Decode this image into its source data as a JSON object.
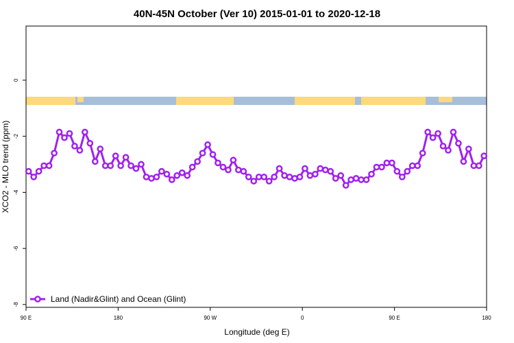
{
  "chart_data": {
    "type": "line",
    "title": "40N-45N October (Ver 10)   2015-01-01 to 2020-12-18",
    "x_label": "Longitude (deg E)",
    "y_label": "XCO2 - MLO trend (ppm)",
    "x": [
      92.5,
      97.5,
      102.5,
      107.5,
      112.5,
      117.5,
      122.5,
      127.5,
      132.5,
      137.5,
      142.5,
      147.5,
      152.5,
      157.5,
      162.5,
      167.5,
      172.5,
      177.5,
      182.5,
      187.5,
      192.5,
      197.5,
      202.5,
      207.5,
      212.5,
      217.5,
      222.5,
      227.5,
      232.5,
      237.5,
      242.5,
      247.5,
      252.5,
      257.5,
      262.5,
      267.5,
      272.5,
      277.5,
      282.5,
      287.5,
      292.5,
      297.5,
      302.5,
      307.5,
      312.5,
      317.5,
      322.5,
      327.5,
      332.5,
      337.5,
      342.5,
      347.5,
      352.5,
      357.5,
      362.5,
      367.5,
      372.5,
      377.5,
      382.5,
      387.5,
      392.5,
      397.5,
      402.5,
      407.5,
      412.5,
      417.5,
      422.5,
      427.5,
      432.5,
      437.5,
      442.5,
      447.5,
      452.5,
      457.5,
      462.5,
      467.5,
      472.5,
      477.5,
      482.5,
      487.5,
      492.5,
      497.5,
      502.5,
      507.5,
      512.5,
      517.5,
      522.5,
      527.5,
      532.5,
      537.5
    ],
    "series": [
      {
        "name": "Land (Nadir&Glint) and Ocean (Glint)",
        "color": "#a020f0",
        "values": [
          -3.25,
          -3.45,
          -3.25,
          -3.05,
          -3.05,
          -2.6,
          -1.85,
          -2.05,
          -1.9,
          -2.35,
          -2.5,
          -1.85,
          -2.25,
          -2.9,
          -2.45,
          -3.05,
          -3.05,
          -2.7,
          -3.05,
          -2.75,
          -3.05,
          -3.15,
          -3.0,
          -3.45,
          -3.5,
          -3.45,
          -3.25,
          -3.35,
          -3.55,
          -3.4,
          -3.3,
          -3.4,
          -3.1,
          -2.9,
          -2.6,
          -2.3,
          -2.65,
          -2.95,
          -3.1,
          -3.2,
          -2.85,
          -3.2,
          -3.25,
          -3.45,
          -3.6,
          -3.45,
          -3.45,
          -3.6,
          -3.45,
          -3.15,
          -3.4,
          -3.45,
          -3.5,
          -3.45,
          -3.15,
          -3.4,
          -3.35,
          -3.15,
          -3.2,
          -3.25,
          -3.5,
          -3.4,
          -3.75,
          -3.55,
          -3.5,
          -3.55,
          -3.55,
          -3.35,
          -3.1,
          -3.1,
          -2.95,
          -2.95,
          -3.25,
          -3.45,
          -3.25,
          -3.05,
          -3.05,
          -2.6,
          -1.85,
          -2.05,
          -1.9,
          -2.35,
          -2.5,
          -1.85,
          -2.25,
          -2.9,
          -2.45,
          -3.05,
          -3.05,
          -2.7
        ]
      }
    ],
    "xlim": [
      90,
      540
    ],
    "xticks": [
      {
        "value": 90,
        "label": "90 E"
      },
      180,
      {
        "value": 270,
        "label": "90 W"
      },
      {
        "value": 360,
        "label": "0"
      },
      {
        "value": 450,
        "label": "90 E"
      },
      {
        "value": 540,
        "label": "180"
      }
    ],
    "ylim": [
      -8.1,
      1.93
    ],
    "yticks": [
      0,
      -2,
      -4,
      -6,
      -8
    ],
    "legend": "bottom-left"
  }
}
